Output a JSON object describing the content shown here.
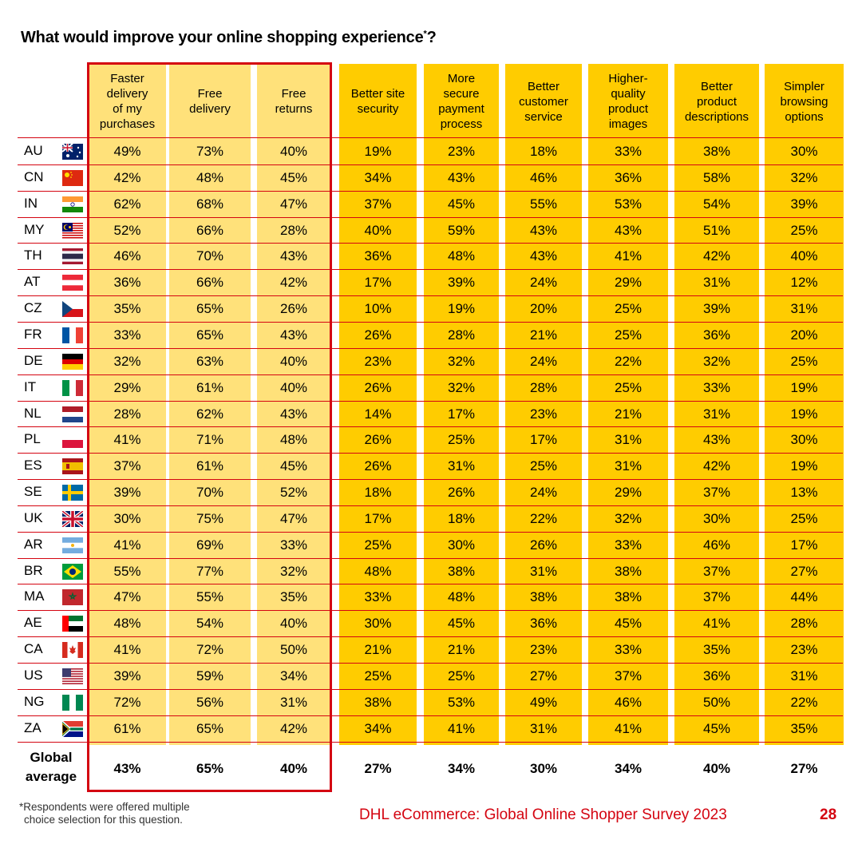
{
  "title": "What would improve your online shopping experience",
  "title_sup": "*",
  "title_end": "?",
  "chart_data": {
    "type": "table",
    "columns": [
      "Faster delivery of my purchases",
      "Free delivery",
      "Free returns",
      "Better site security",
      "More secure payment process",
      "Better customer service",
      "Higher-quality product images",
      "Better product descriptions",
      "Simpler browsing options"
    ],
    "rows": [
      {
        "country": "AU",
        "flag": "au-flag",
        "values": [
          "49%",
          "73%",
          "40%",
          "19%",
          "23%",
          "18%",
          "33%",
          "38%",
          "30%"
        ]
      },
      {
        "country": "CN",
        "flag": "cn-flag",
        "values": [
          "42%",
          "48%",
          "45%",
          "34%",
          "43%",
          "46%",
          "36%",
          "58%",
          "32%"
        ]
      },
      {
        "country": "IN",
        "flag": "in-flag",
        "values": [
          "62%",
          "68%",
          "47%",
          "37%",
          "45%",
          "55%",
          "53%",
          "54%",
          "39%"
        ]
      },
      {
        "country": "MY",
        "flag": "my-flag",
        "values": [
          "52%",
          "66%",
          "28%",
          "40%",
          "59%",
          "43%",
          "43%",
          "51%",
          "25%"
        ]
      },
      {
        "country": "TH",
        "flag": "th-flag",
        "values": [
          "46%",
          "70%",
          "43%",
          "36%",
          "48%",
          "43%",
          "41%",
          "42%",
          "40%"
        ]
      },
      {
        "country": "AT",
        "flag": "at-flag",
        "values": [
          "36%",
          "66%",
          "42%",
          "17%",
          "39%",
          "24%",
          "29%",
          "31%",
          "12%"
        ]
      },
      {
        "country": "CZ",
        "flag": "cz-flag",
        "values": [
          "35%",
          "65%",
          "26%",
          "10%",
          "19%",
          "20%",
          "25%",
          "39%",
          "31%"
        ]
      },
      {
        "country": "FR",
        "flag": "fr-flag",
        "values": [
          "33%",
          "65%",
          "43%",
          "26%",
          "28%",
          "21%",
          "25%",
          "36%",
          "20%"
        ]
      },
      {
        "country": "DE",
        "flag": "de-flag",
        "values": [
          "32%",
          "63%",
          "40%",
          "23%",
          "32%",
          "24%",
          "22%",
          "32%",
          "25%"
        ]
      },
      {
        "country": "IT",
        "flag": "it-flag",
        "values": [
          "29%",
          "61%",
          "40%",
          "26%",
          "32%",
          "28%",
          "25%",
          "33%",
          "19%"
        ]
      },
      {
        "country": "NL",
        "flag": "nl-flag",
        "values": [
          "28%",
          "62%",
          "43%",
          "14%",
          "17%",
          "23%",
          "21%",
          "31%",
          "19%"
        ]
      },
      {
        "country": "PL",
        "flag": "pl-flag",
        "values": [
          "41%",
          "71%",
          "48%",
          "26%",
          "25%",
          "17%",
          "31%",
          "43%",
          "30%"
        ]
      },
      {
        "country": "ES",
        "flag": "es-flag",
        "values": [
          "37%",
          "61%",
          "45%",
          "26%",
          "31%",
          "25%",
          "31%",
          "42%",
          "19%"
        ]
      },
      {
        "country": "SE",
        "flag": "se-flag",
        "values": [
          "39%",
          "70%",
          "52%",
          "18%",
          "26%",
          "24%",
          "29%",
          "37%",
          "13%"
        ]
      },
      {
        "country": "UK",
        "flag": "uk-flag",
        "values": [
          "30%",
          "75%",
          "47%",
          "17%",
          "18%",
          "22%",
          "32%",
          "30%",
          "25%"
        ]
      },
      {
        "country": "AR",
        "flag": "ar-flag",
        "values": [
          "41%",
          "69%",
          "33%",
          "25%",
          "30%",
          "26%",
          "33%",
          "46%",
          "17%"
        ]
      },
      {
        "country": "BR",
        "flag": "br-flag",
        "values": [
          "55%",
          "77%",
          "32%",
          "48%",
          "38%",
          "31%",
          "38%",
          "37%",
          "27%"
        ]
      },
      {
        "country": "MA",
        "flag": "ma-flag",
        "values": [
          "47%",
          "55%",
          "35%",
          "33%",
          "48%",
          "38%",
          "38%",
          "37%",
          "44%"
        ]
      },
      {
        "country": "AE",
        "flag": "ae-flag",
        "values": [
          "48%",
          "54%",
          "40%",
          "30%",
          "45%",
          "36%",
          "45%",
          "41%",
          "28%"
        ]
      },
      {
        "country": "CA",
        "flag": "ca-flag",
        "values": [
          "41%",
          "72%",
          "50%",
          "21%",
          "21%",
          "23%",
          "33%",
          "35%",
          "23%"
        ]
      },
      {
        "country": "US",
        "flag": "us-flag",
        "values": [
          "39%",
          "59%",
          "34%",
          "25%",
          "25%",
          "27%",
          "37%",
          "36%",
          "31%"
        ]
      },
      {
        "country": "NG",
        "flag": "ng-flag",
        "values": [
          "72%",
          "56%",
          "31%",
          "38%",
          "53%",
          "49%",
          "46%",
          "50%",
          "22%"
        ]
      },
      {
        "country": "ZA",
        "flag": "za-flag",
        "values": [
          "61%",
          "65%",
          "42%",
          "34%",
          "41%",
          "31%",
          "41%",
          "45%",
          "35%"
        ]
      }
    ],
    "global_label": "Global average",
    "global": [
      "43%",
      "65%",
      "40%",
      "27%",
      "34%",
      "30%",
      "34%",
      "40%",
      "27%"
    ],
    "highlighted_columns": [
      0,
      1,
      2
    ]
  },
  "headers_display": [
    [
      "Faster",
      "delivery",
      "of my",
      "purchases"
    ],
    [
      "Free",
      "delivery"
    ],
    [
      "Free",
      "returns"
    ],
    [
      "Better site",
      "security"
    ],
    [
      "More",
      "secure",
      "payment",
      "process"
    ],
    [
      "Better",
      "customer",
      "service"
    ],
    [
      "Higher-",
      "quality",
      "product",
      "images"
    ],
    [
      "Better",
      "product",
      "descriptions"
    ],
    [
      "Simpler",
      "browsing",
      "options"
    ]
  ],
  "global_label_lines": [
    "Global",
    "average"
  ],
  "footnote_lines": [
    "*Respondents were offered multiple",
    "choice selection for this question."
  ],
  "source": "DHL eCommerce: Global Online Shopper Survey 2023",
  "page_number": "28",
  "colors": {
    "yellow": "#ffcc00",
    "light_yellow": "#ffe17a",
    "red": "#d40511"
  }
}
